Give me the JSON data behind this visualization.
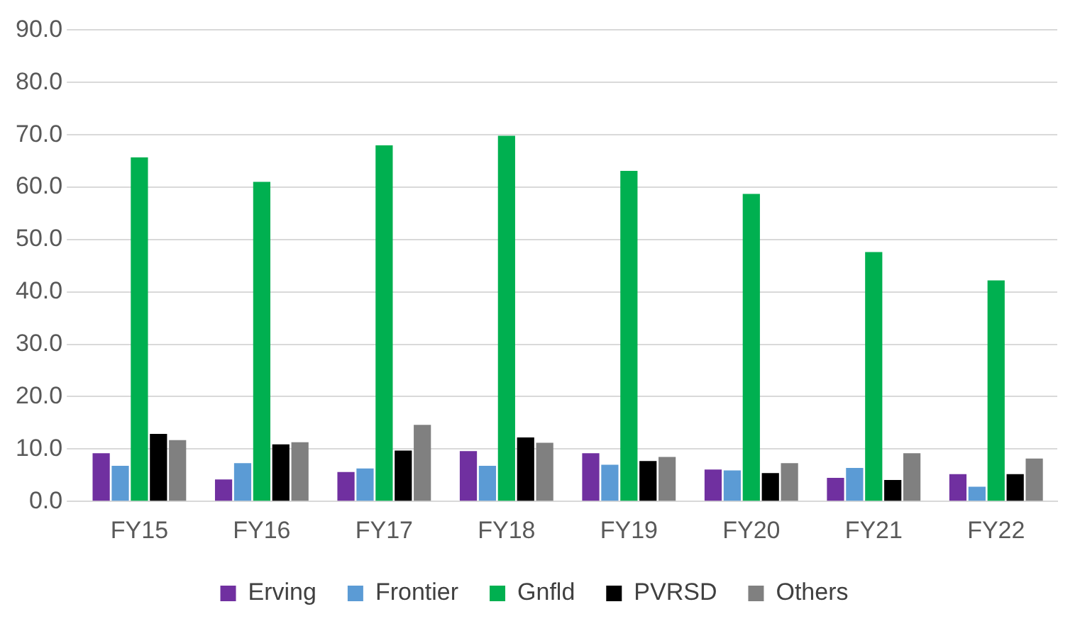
{
  "chart_data": {
    "type": "bar",
    "categories": [
      "FY15",
      "FY16",
      "FY17",
      "FY18",
      "FY19",
      "FY20",
      "FY21",
      "FY22"
    ],
    "series": [
      {
        "name": "Erving",
        "color": "#7030a0",
        "values": [
          9.2,
          4.2,
          5.6,
          9.6,
          9.2,
          6.1,
          4.5,
          5.2
        ]
      },
      {
        "name": "Frontier",
        "color": "#5b9bd5",
        "values": [
          6.8,
          7.3,
          6.3,
          6.8,
          7.0,
          5.9,
          6.4,
          2.8
        ]
      },
      {
        "name": "Gnfld",
        "color": "#00b050",
        "values": [
          65.7,
          61.0,
          68.0,
          69.8,
          63.1,
          58.7,
          47.6,
          42.2
        ]
      },
      {
        "name": "PVRSD",
        "color": "#000000",
        "values": [
          12.9,
          10.9,
          9.7,
          12.2,
          7.7,
          5.4,
          4.1,
          5.2
        ]
      },
      {
        "name": "Others",
        "color": "#808080",
        "values": [
          11.7,
          11.3,
          14.6,
          11.2,
          8.5,
          7.3,
          9.2,
          8.2
        ]
      }
    ],
    "ylim": [
      0,
      90
    ],
    "yticks": [
      {
        "value": 0,
        "label": "0.0"
      },
      {
        "value": 10,
        "label": "10.0"
      },
      {
        "value": 20,
        "label": "20.0"
      },
      {
        "value": 30,
        "label": "30.0"
      },
      {
        "value": 40,
        "label": "40.0"
      },
      {
        "value": 50,
        "label": "50.0"
      },
      {
        "value": 60,
        "label": "60.0"
      },
      {
        "value": 70,
        "label": "70.0"
      },
      {
        "value": 80,
        "label": "80.0"
      },
      {
        "value": 90,
        "label": "90.0"
      }
    ],
    "grid": "y",
    "legend": "bottom"
  }
}
